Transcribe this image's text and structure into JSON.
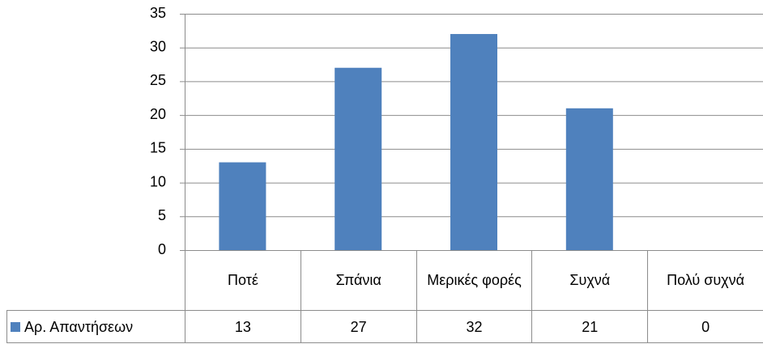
{
  "chart_data": {
    "type": "bar",
    "categories": [
      "Ποτέ",
      "Σπάνια",
      "Μερικές φορές",
      "Συχνά",
      "Πολύ συχνά"
    ],
    "series": [
      {
        "name": "Αρ. Απαντήσεων",
        "color": "#4f81bd",
        "values": [
          13,
          27,
          32,
          21,
          0
        ]
      }
    ],
    "ylim": [
      0,
      35
    ],
    "yticks": [
      0,
      5,
      10,
      15,
      20,
      25,
      30,
      35
    ],
    "grid": true
  }
}
